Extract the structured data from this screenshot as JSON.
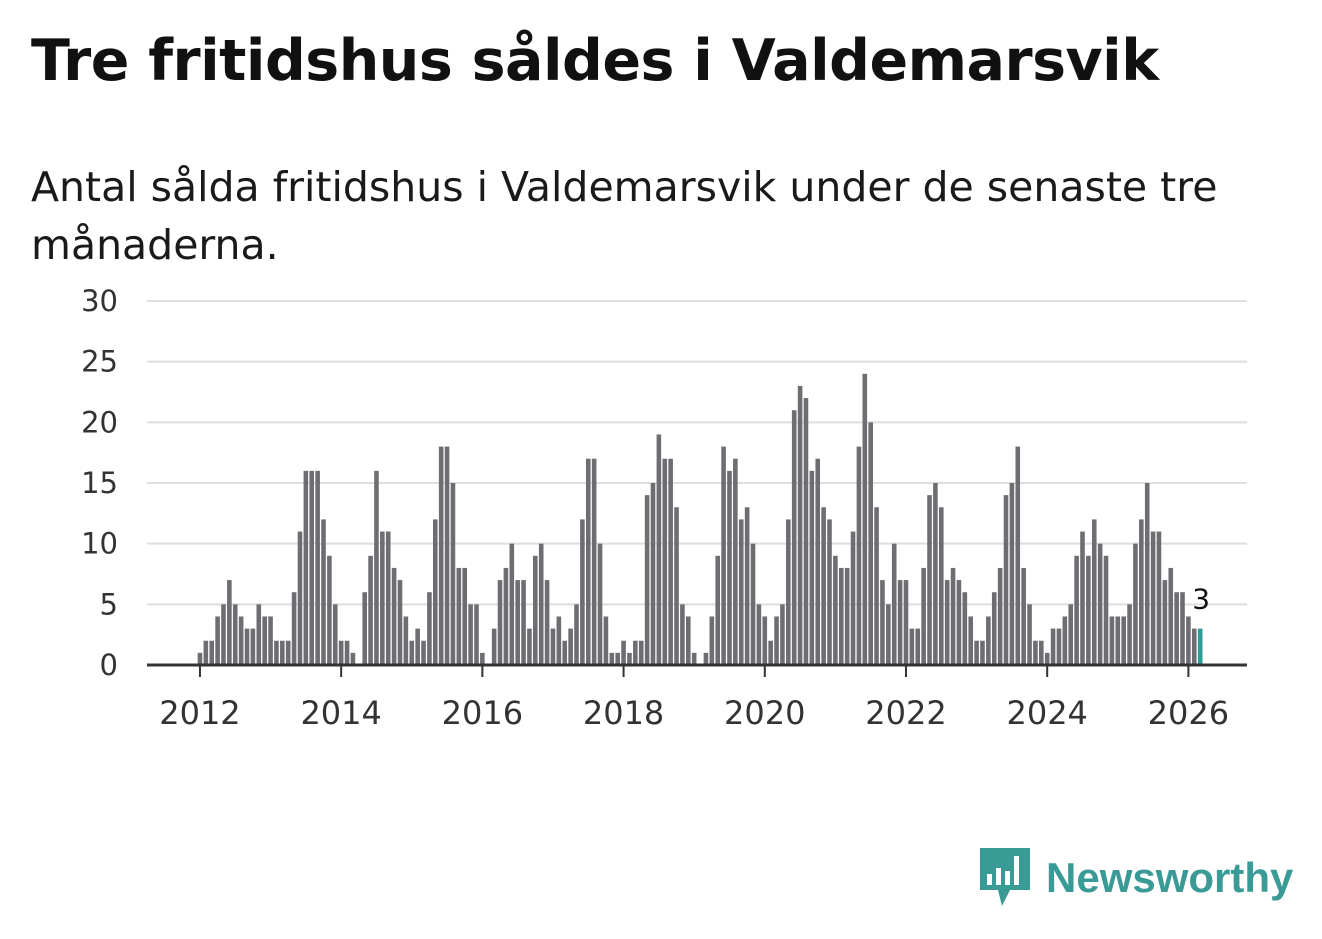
{
  "title": "Tre fritidshus såldes i Valdemarsvik",
  "subtitle": "Antal sålda fritidshus i Valdemarsvik under de senaste tre månaderna.",
  "brand": {
    "name": "Newsworthy",
    "color": "#3a9a96"
  },
  "colors": {
    "bar": "#6e6d72",
    "highlight": "#2a9d96",
    "grid": "#dedede",
    "axis": "#333333"
  },
  "chart_data": {
    "type": "bar",
    "ylim": [
      0,
      30
    ],
    "yticks": [
      0,
      5,
      10,
      15,
      20,
      25,
      30
    ],
    "xlim": [
      2011.25,
      2026.83
    ],
    "xticks": [
      2012,
      2014,
      2016,
      2018,
      2020,
      2022,
      2024,
      2026
    ],
    "series": [
      {
        "start": "2011-04",
        "frequency": "monthly",
        "values": [
          0,
          0,
          0,
          0,
          0,
          0,
          0,
          0,
          0,
          1,
          2,
          2,
          4,
          5,
          7,
          5,
          4,
          3,
          3,
          5,
          4,
          4,
          2,
          2,
          2,
          6,
          11,
          16,
          16,
          16,
          12,
          9,
          5,
          2,
          2,
          1,
          0,
          6,
          9,
          16,
          11,
          11,
          8,
          7,
          4,
          2,
          3,
          2,
          6,
          12,
          18,
          18,
          15,
          8,
          8,
          5,
          5,
          1,
          0,
          3,
          7,
          8,
          10,
          7,
          7,
          3,
          9,
          10,
          7,
          3,
          4,
          2,
          3,
          5,
          12,
          17,
          17,
          10,
          4,
          1,
          1,
          2,
          1,
          2,
          2,
          14,
          15,
          19,
          17,
          17,
          13,
          5,
          4,
          1,
          0,
          1,
          4,
          9,
          18,
          16,
          17,
          12,
          13,
          10,
          5,
          4,
          2,
          4,
          5,
          12,
          21,
          23,
          22,
          16,
          17,
          13,
          12,
          9,
          8,
          8,
          11,
          18,
          24,
          20,
          13,
          7,
          5,
          10,
          7,
          7,
          3,
          3,
          8,
          14,
          15,
          13,
          7,
          8,
          7,
          6,
          4,
          2,
          2,
          4,
          6,
          8,
          14,
          15,
          18,
          8,
          5,
          2,
          2,
          1,
          3,
          3,
          4,
          5,
          9,
          11,
          9,
          12,
          10,
          9,
          4,
          4,
          4,
          5,
          10,
          12,
          15,
          11,
          11,
          7,
          8,
          6,
          6,
          4,
          3,
          3
        ]
      }
    ],
    "highlight": {
      "label": "3",
      "value": 3
    }
  }
}
